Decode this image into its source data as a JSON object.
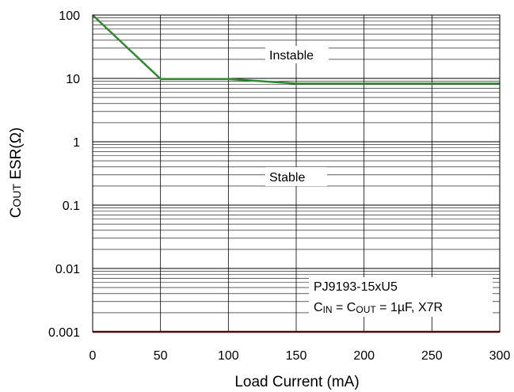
{
  "chart_data": {
    "type": "line",
    "title": "",
    "xlabel": "Load Current (mA)",
    "ylabel_main": "C",
    "ylabel_sub": "OUT",
    "ylabel_rest": "  ESR(Ω)",
    "xlim": [
      0,
      300
    ],
    "ylim": [
      0.001,
      100
    ],
    "yscale": "log",
    "grid": true,
    "x_ticks": [
      0,
      50,
      100,
      150,
      200,
      250,
      300
    ],
    "x_tick_labels": [
      "0",
      "50",
      "100",
      "150",
      "200",
      "250",
      "300"
    ],
    "y_ticks": [
      0.001,
      0.01,
      0.1,
      1,
      10,
      100
    ],
    "y_tick_labels": [
      "0.001",
      "0.01",
      "0.1",
      "1",
      "10",
      "100"
    ],
    "series": [
      {
        "color": "#2e8b2e",
        "x": [
          0,
          50,
          100,
          150,
          300
        ],
        "y": [
          100,
          9.8,
          9.8,
          8.3,
          8.3
        ]
      },
      {
        "color": "#8b1a1a",
        "x": [
          0,
          300
        ],
        "y": [
          0.001,
          0.001
        ]
      }
    ],
    "annotations": {
      "instable": "Instable",
      "stable": "Stable",
      "part": "PJ9193-15xU5",
      "cond_c1": "C",
      "cond_sub1": "IN",
      "cond_mid": " = C",
      "cond_sub2": "OUT",
      "cond_end": " = 1µF, X7R"
    }
  }
}
